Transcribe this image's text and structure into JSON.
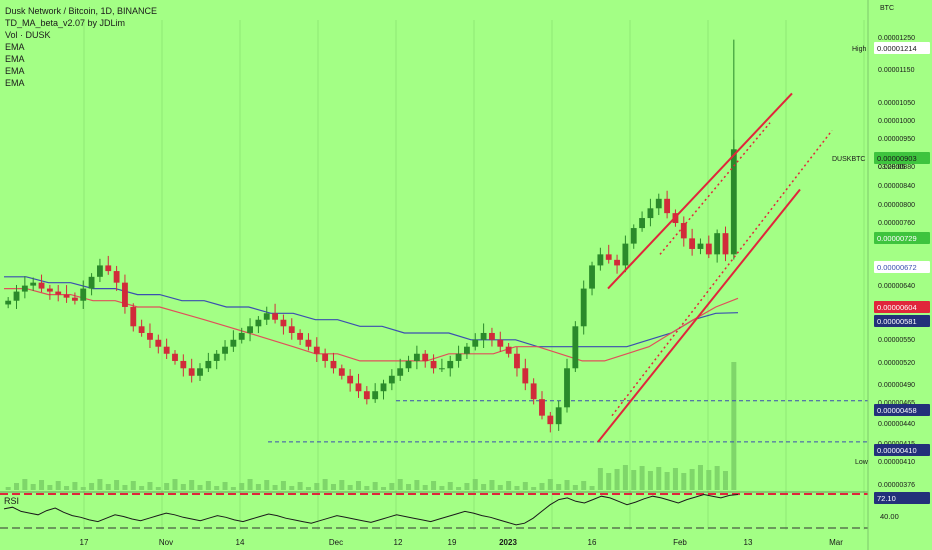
{
  "legend": {
    "title": "Dusk Network / Bitcoin, 1D, BINANCE",
    "indicator": "TD_MA_beta_v2.07 by JDLim",
    "volume": "Vol · DUSK",
    "ema": [
      "EMA",
      "EMA",
      "EMA",
      "EMA"
    ]
  },
  "colors": {
    "background": "#a3ff85",
    "up": "#2a8a2a",
    "down": "#d12b3a",
    "channel_solid": "#e0263b",
    "channel_dotted": "#e0263b",
    "ema_blue": "#3b4fb0",
    "ema_red": "#e0505a",
    "price_label": "#3ec43e"
  },
  "axis": {
    "currency": "BTC",
    "y_ticks": [
      "0.00001250",
      "0.00001150",
      "0.00001050",
      "0.00001000",
      "0.00000950",
      "0.00000880",
      "0.00000840",
      "0.00000800",
      "0.00000760",
      "0.00000720",
      "0.00000640",
      "0.00000600",
      "0.00000550",
      "0.00000520",
      "0.00000490",
      "0.00000465",
      "0.00000440",
      "0.00000415",
      "0.00000376"
    ],
    "x_ticks": [
      "17",
      "Nov",
      "14",
      "Dec",
      "12",
      "19",
      "2023",
      "16",
      "Feb",
      "13",
      "Mar"
    ]
  },
  "labels": {
    "high": {
      "tag": "High",
      "value": "0.00001214"
    },
    "last": {
      "tag": "DUSKBTC",
      "value": "0.00000903",
      "countdown": "03:28:05"
    },
    "ema_a": "0.00000729",
    "ema_b": "0.00000672",
    "ema_c": "0.00000604",
    "ema_d": "0.00000581",
    "support1": "0.00000458",
    "support2": "0.00000410",
    "low": {
      "tag": "Low",
      "value": "0.00000410"
    },
    "vol_tick": "0.00000410"
  },
  "rsi": {
    "label": "RSI",
    "value": "72.10",
    "tick": "40.00"
  },
  "chart_data": {
    "type": "candlestick",
    "title": "Dusk Network / Bitcoin, 1D, BINANCE",
    "ylabel": "BTC",
    "ylim": [
      3.6e-06,
      1.28e-05
    ],
    "x_ticks": [
      "17",
      "Nov",
      "14",
      "Dec",
      "12",
      "19",
      "2023",
      "16",
      "Feb",
      "13",
      "Mar"
    ],
    "series": [
      {
        "name": "DUSKBTC close (approx.)",
        "values": [
          6e-06,
          6.15e-06,
          6.25e-06,
          6.3e-06,
          6.2e-06,
          6.15e-06,
          6.1e-06,
          6.05e-06,
          6e-06,
          6.2e-06,
          6.4e-06,
          6.6e-06,
          6.5e-06,
          6.3e-06,
          5.9e-06,
          5.6e-06,
          5.5e-06,
          5.4e-06,
          5.3e-06,
          5.2e-06,
          5.1e-06,
          5e-06,
          4.9e-06,
          5e-06,
          5.1e-06,
          5.2e-06,
          5.3e-06,
          5.4e-06,
          5.5e-06,
          5.6e-06,
          5.7e-06,
          5.8e-06,
          5.7e-06,
          5.6e-06,
          5.5e-06,
          5.4e-06,
          5.3e-06,
          5.2e-06,
          5.1e-06,
          5e-06,
          4.9e-06,
          4.8e-06,
          4.7e-06,
          4.6e-06,
          4.7e-06,
          4.8e-06,
          4.9e-06,
          5e-06,
          5.1e-06,
          5.2e-06,
          5.1e-06,
          5e-06,
          5e-06,
          5.1e-06,
          5.2e-06,
          5.3e-06,
          5.4e-06,
          5.5e-06,
          5.4e-06,
          5.3e-06,
          5.2e-06,
          5e-06,
          4.8e-06,
          4.6e-06,
          4.4e-06,
          4.3e-06,
          4.5e-06,
          5e-06,
          5.6e-06,
          6.2e-06,
          6.6e-06,
          6.8e-06,
          6.7e-06,
          6.6e-06,
          7e-06,
          7.3e-06,
          7.5e-06,
          7.7e-06,
          7.9e-06,
          7.6e-06,
          7.4e-06,
          7.1e-06,
          6.9e-06,
          7e-06,
          6.8e-06,
          7.2e-06,
          6.8e-06,
          9.03e-06
        ]
      },
      {
        "name": "EMA (blue)",
        "values": [
          6.4e-06,
          6.4e-06,
          6.3e-06,
          6.3e-06,
          6.2e-06,
          6.2e-06,
          6.1e-06,
          6.1e-06,
          6e-06,
          6e-06,
          5.9e-06,
          5.9e-06,
          5.8e-06,
          5.8e-06,
          5.7e-06,
          5.7e-06,
          5.6e-06,
          5.6e-06,
          5.5e-06,
          5.5e-06,
          5.5e-06,
          5.4e-06,
          5.4e-06,
          5.4e-06,
          5.3e-06,
          5.3e-06,
          5.3e-06,
          5.3e-06,
          5.3e-06,
          5.4e-06,
          5.5e-06,
          5.7e-06,
          5.8e-06,
          5.81e-06
        ]
      },
      {
        "name": "EMA (red)",
        "values": [
          6.2e-06,
          6.2e-06,
          6.1e-06,
          6.1e-06,
          6e-06,
          6e-06,
          5.9e-06,
          5.9e-06,
          5.8e-06,
          5.7e-06,
          5.6e-06,
          5.5e-06,
          5.4e-06,
          5.3e-06,
          5.2e-06,
          5.2e-06,
          5.1e-06,
          5.1e-06,
          5.1e-06,
          5.1e-06,
          5.2e-06,
          5.2e-06,
          5.2e-06,
          5.3e-06,
          5.3e-06,
          5.2e-06,
          5.1e-06,
          5.1e-06,
          5.2e-06,
          5.3e-06,
          5.5e-06,
          5.7e-06,
          5.9e-06,
          6.04e-06
        ]
      },
      {
        "name": "RSI",
        "values": [
          55,
          57,
          52,
          50,
          48,
          53,
          56,
          51,
          47,
          45,
          42,
          40,
          44,
          48,
          46,
          43,
          41,
          44,
          47,
          50,
          48,
          45,
          43,
          41,
          44,
          47,
          45,
          42,
          40,
          43,
          46,
          49,
          47,
          44,
          42,
          40,
          38,
          41,
          44,
          47,
          45,
          43,
          41,
          39,
          42,
          45,
          48,
          46,
          44,
          42,
          40,
          43,
          46,
          49,
          52,
          50,
          47,
          45,
          42,
          39,
          36,
          38,
          44,
          52,
          60,
          66,
          68,
          64,
          62,
          66,
          70,
          68,
          64,
          60,
          63,
          67,
          70,
          68,
          65,
          62,
          66,
          69,
          72,
          70,
          68,
          71,
          72
        ]
      }
    ],
    "annotations": {
      "high": 1.214e-05,
      "last": 9.03e-06,
      "low": 4.1e-06,
      "support_lines": [
        4.58e-06,
        4.1e-06
      ]
    }
  }
}
